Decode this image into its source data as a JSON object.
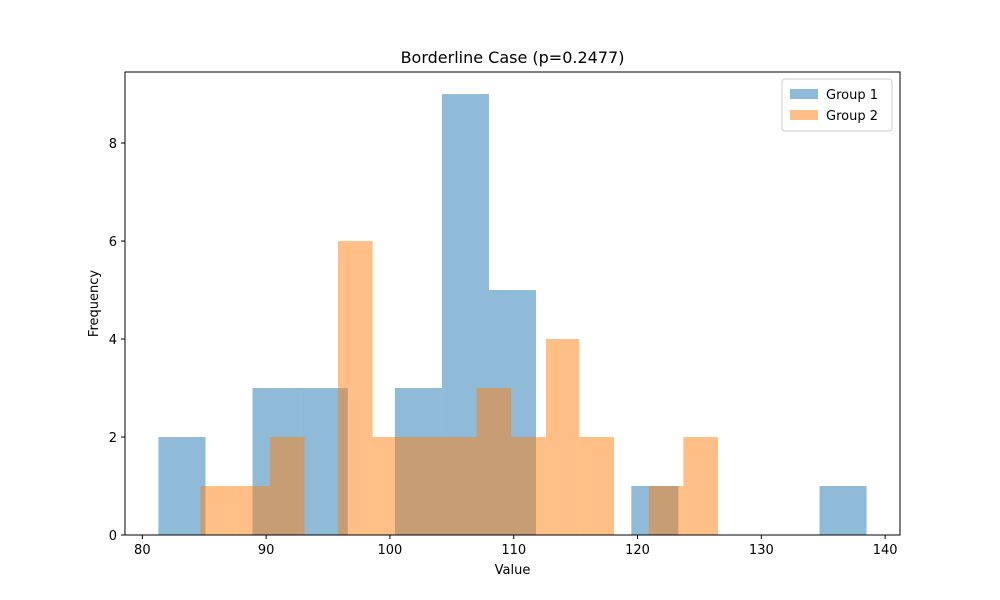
{
  "chart_data": {
    "type": "bar",
    "subtype": "overlapping-histogram",
    "title": "Borderline Case (p=0.2477)",
    "xlabel": "Value",
    "ylabel": "Frequency",
    "xlim": [
      78.6,
      141.2
    ],
    "ylim": [
      0,
      9.45
    ],
    "xticks": [
      80,
      90,
      100,
      110,
      120,
      130,
      140
    ],
    "yticks": [
      0,
      2,
      4,
      6,
      8
    ],
    "grid": false,
    "legend_position": "top-right",
    "series": [
      {
        "name": "Group 1",
        "color": "#1f77b4",
        "opacity": 0.5,
        "bin_edges": [
          81.3,
          85.1,
          88.9,
          92.8,
          96.6,
          100.4,
          104.2,
          108.0,
          111.8,
          115.7,
          119.5,
          123.3,
          127.1,
          130.9,
          134.7,
          138.5
        ],
        "counts": [
          2,
          0,
          3,
          3,
          0,
          3,
          9,
          5,
          0,
          0,
          1,
          0,
          0,
          0,
          1
        ]
      },
      {
        "name": "Group 2",
        "color": "#ff7f0e",
        "opacity": 0.5,
        "bin_edges": [
          84.7,
          87.5,
          90.3,
          93.1,
          95.8,
          98.6,
          101.4,
          104.2,
          107.0,
          109.8,
          112.6,
          115.3,
          118.1,
          120.9,
          123.7,
          126.5
        ],
        "counts": [
          1,
          1,
          2,
          0,
          6,
          2,
          2,
          2,
          3,
          2,
          4,
          2,
          0,
          1,
          2
        ]
      }
    ]
  }
}
